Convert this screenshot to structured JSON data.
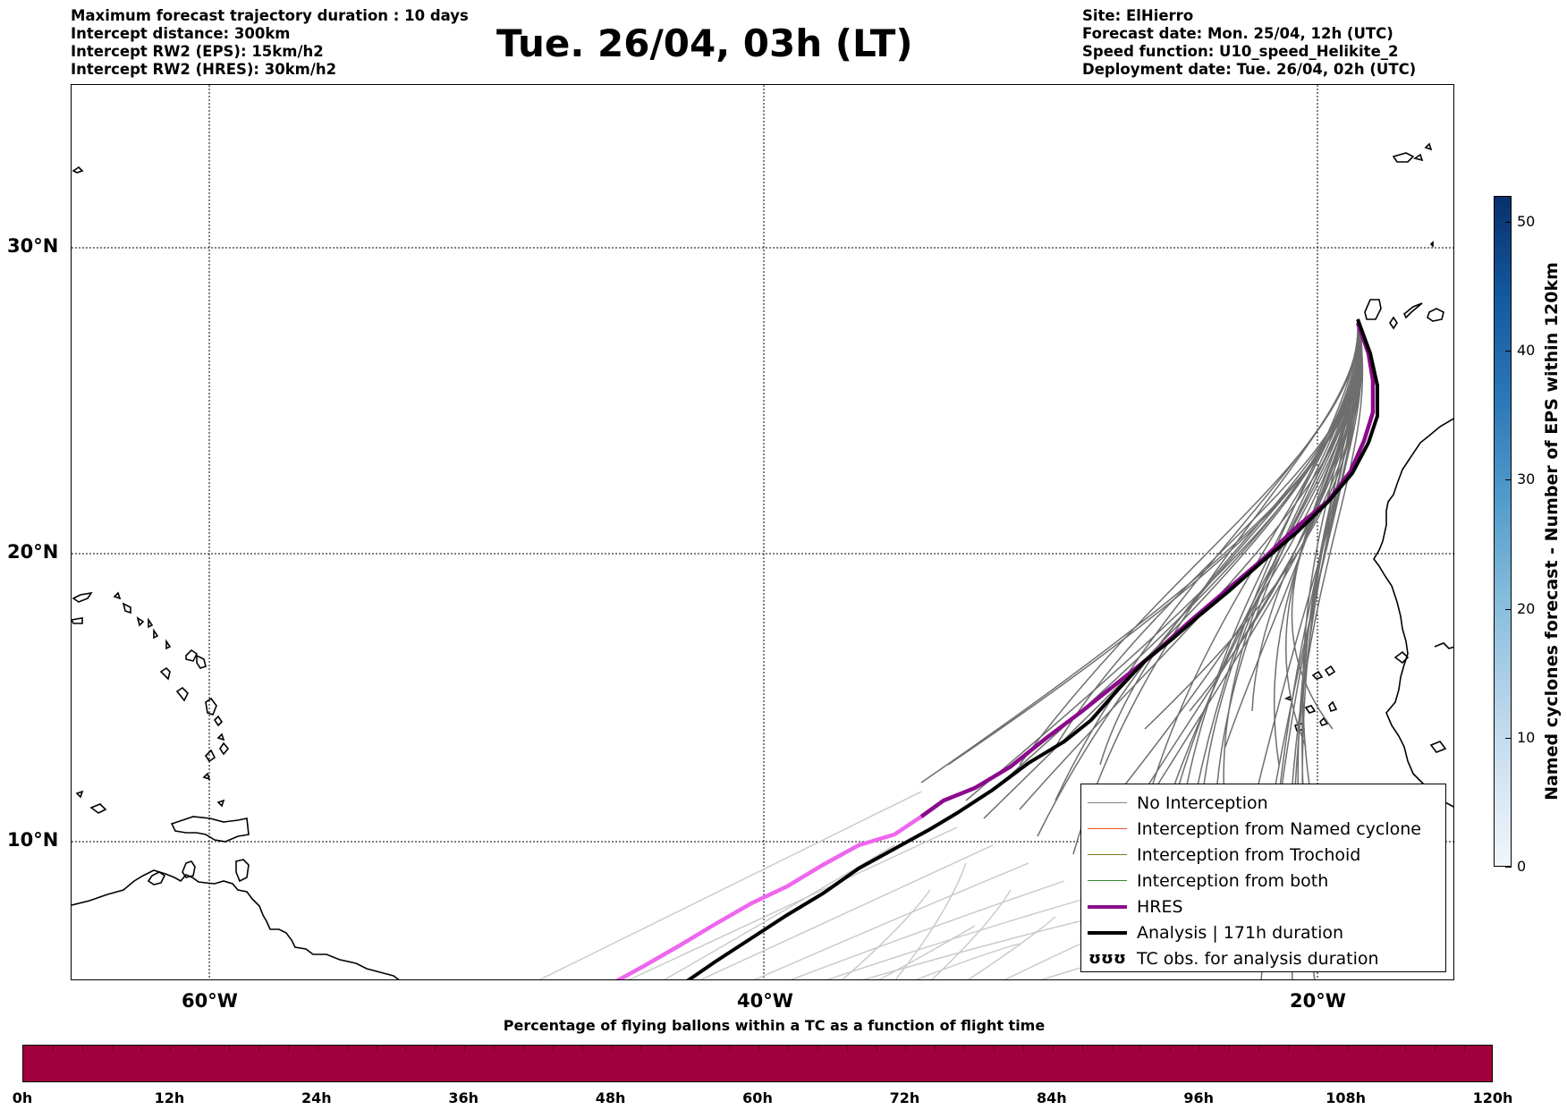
{
  "header": {
    "left_lines": [
      "Maximum forecast trajectory duration : 10 days",
      "Intercept distance: 300km",
      "Intercept RW2 (EPS):  15km/h2",
      "Intercept RW2 (HRES): 30km/h2"
    ],
    "title": "Tue. 26/04, 03h (LT)",
    "right_lines": [
      "Site: ElHierro",
      "Forecast date: Mon. 25/04, 12h (UTC)",
      "Speed function: U10_speed_Helikite_2",
      "Deployment date: Tue. 26/04, 02h (UTC)"
    ]
  },
  "map": {
    "lat_labels": [
      "30°N",
      "20°N",
      "10°N"
    ],
    "lon_labels": [
      "60°W",
      "40°W",
      "20°W"
    ],
    "colors": {
      "no_interception": "#6e6e6e",
      "no_interception_light": "#c8c8c8",
      "named_cyclone": "#e8541e",
      "trochoid": "#7a7a1e",
      "both": "#2e8b2e",
      "hres": "#8b0a8b",
      "hres_light": "#ee66ee",
      "analysis": "#000000"
    }
  },
  "legend": {
    "items": [
      {
        "label": "No Interception",
        "color": "#808080",
        "width": 1
      },
      {
        "label": "Interception from Named cyclone",
        "color": "#e8541e",
        "width": 1
      },
      {
        "label": "Interception from Trochoid",
        "color": "#7a7a1e",
        "width": 1
      },
      {
        "label": "Interception from both",
        "color": "#2e8b2e",
        "width": 1
      },
      {
        "label": "HRES",
        "color": "#8b0a8b",
        "width": 4
      },
      {
        "label": "Analysis | 171h duration",
        "color": "#000000",
        "width": 4
      },
      {
        "label": "TC obs. for analysis duration",
        "color": "#000000",
        "width": 0,
        "symbol": "ʊʊʊ"
      }
    ]
  },
  "colorbar_vertical": {
    "label": "Named cyclones forecast - Number of EPS within 120km",
    "ticks": [
      "0",
      "10",
      "20",
      "30",
      "40",
      "50"
    ],
    "range": [
      0,
      52
    ]
  },
  "colorbar_horizontal": {
    "title": "Percentage of flying ballons within a TC as a function of flight time",
    "ticks": [
      "0h",
      "12h",
      "24h",
      "36h",
      "48h",
      "60h",
      "72h",
      "84h",
      "96h",
      "108h",
      "120h"
    ],
    "color": "#a0003c"
  }
}
